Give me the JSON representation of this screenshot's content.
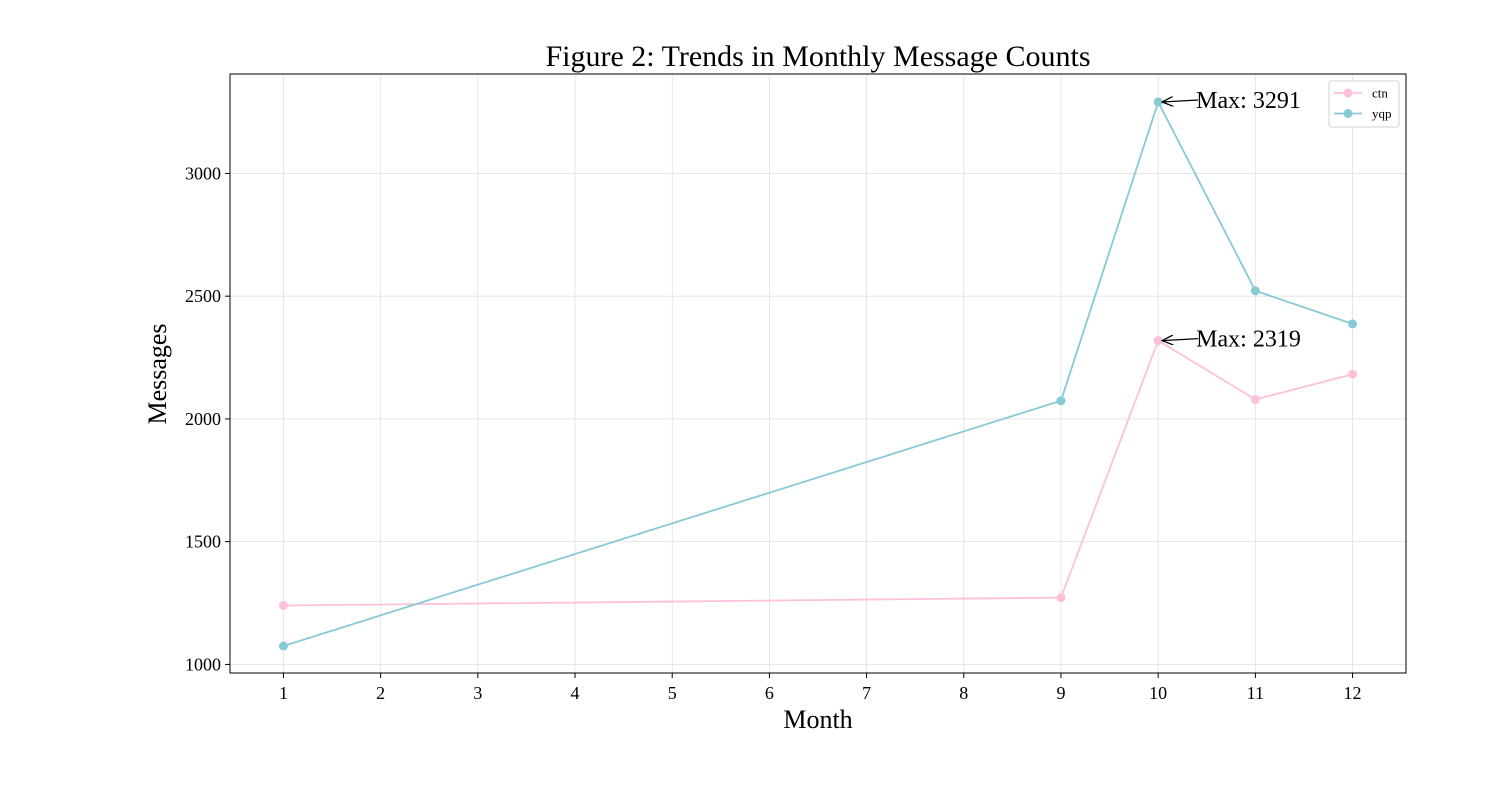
{
  "chart_data": {
    "type": "line",
    "title": "Figure 2: Trends in Monthly Message Counts",
    "xlabel": "Month",
    "ylabel": "Messages",
    "xlim": [
      0.45,
      12.55
    ],
    "ylim": [
      965,
      3405
    ],
    "xticks": [
      1,
      2,
      3,
      4,
      5,
      6,
      7,
      8,
      9,
      10,
      11,
      12
    ],
    "xtick_labels": [
      "1",
      "2",
      "3",
      "4",
      "5",
      "6",
      "7",
      "8",
      "9",
      "10",
      "11",
      "12"
    ],
    "yticks": [
      1000,
      1500,
      2000,
      2500,
      3000
    ],
    "ytick_labels": [
      "1000",
      "1500",
      "2000",
      "2500",
      "3000"
    ],
    "grid": true,
    "legend_position": "top-right",
    "series": [
      {
        "name": "ctn",
        "color": "#FFC0D9",
        "x": [
          1,
          9,
          10,
          11,
          12
        ],
        "y": [
          1240,
          1272,
          2319,
          2079,
          2182
        ]
      },
      {
        "name": "yqp",
        "color": "#86CAD6",
        "x": [
          1,
          9,
          10,
          11,
          12
        ],
        "y": [
          1075,
          2074,
          3291,
          2522,
          2387
        ]
      }
    ],
    "annotations": [
      {
        "text": "Max: 3291",
        "x": 10,
        "y": 3291
      },
      {
        "text": "Max: 2319",
        "x": 10,
        "y": 2319
      }
    ]
  }
}
